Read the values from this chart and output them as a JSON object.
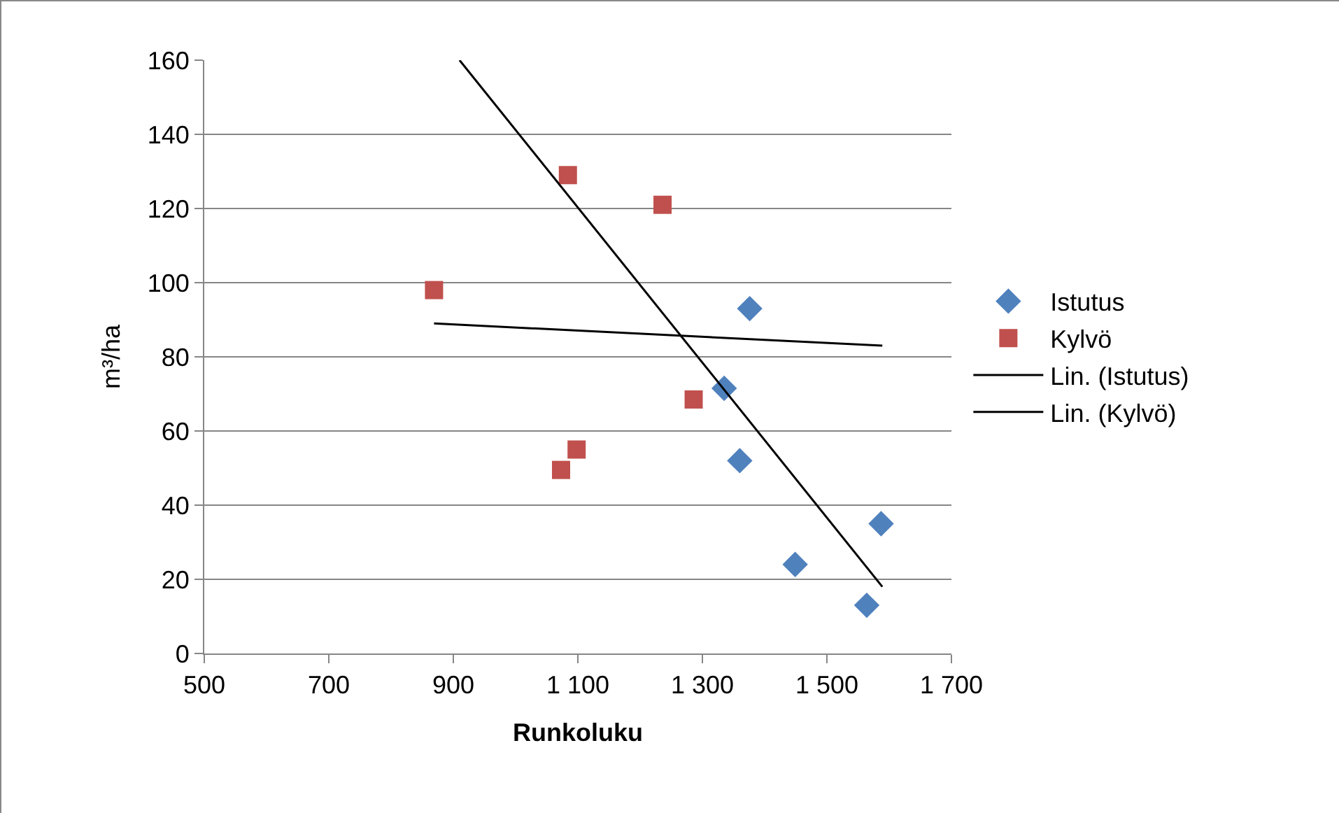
{
  "chart_data": {
    "type": "scatter",
    "xlabel": "Runkoluku",
    "ylabel": "m³/ha",
    "xlim": [
      500,
      1700
    ],
    "xticks": [
      500,
      700,
      900,
      {
        "value": 1100,
        "label": "1 100"
      },
      {
        "value": 1300,
        "label": "1 300"
      },
      {
        "value": 1500,
        "label": "1 500"
      },
      {
        "value": 1700,
        "label": "1 700"
      }
    ],
    "ylim": [
      0,
      160
    ],
    "yticks": [
      0,
      20,
      40,
      60,
      80,
      100,
      120,
      140,
      160
    ],
    "grid": "y",
    "legend": "right",
    "series": [
      {
        "name": "Istutus",
        "type": "scatter",
        "marker": "diamond",
        "color": "#4f81bd",
        "x": [
          1376,
          1335,
          1360,
          1449,
          1587,
          1564
        ],
        "values": [
          93,
          71.5,
          52,
          24,
          35,
          13
        ]
      },
      {
        "name": "Kylvö",
        "type": "scatter",
        "marker": "square",
        "color": "#c0504d",
        "x": [
          869,
          1084,
          1236,
          1286,
          1073,
          1098
        ],
        "values": [
          98,
          129,
          121,
          68.5,
          49.5,
          55
        ]
      },
      {
        "name": "Lin. (Istutus)",
        "type": "line",
        "marker": "none",
        "color": "#000000",
        "x": [
          910,
          1589
        ],
        "values": [
          160,
          18
        ]
      },
      {
        "name": "Lin. (Kylvö)",
        "type": "line",
        "marker": "none",
        "color": "#000000",
        "x": [
          869,
          1589
        ],
        "values": [
          89,
          83
        ]
      }
    ]
  }
}
